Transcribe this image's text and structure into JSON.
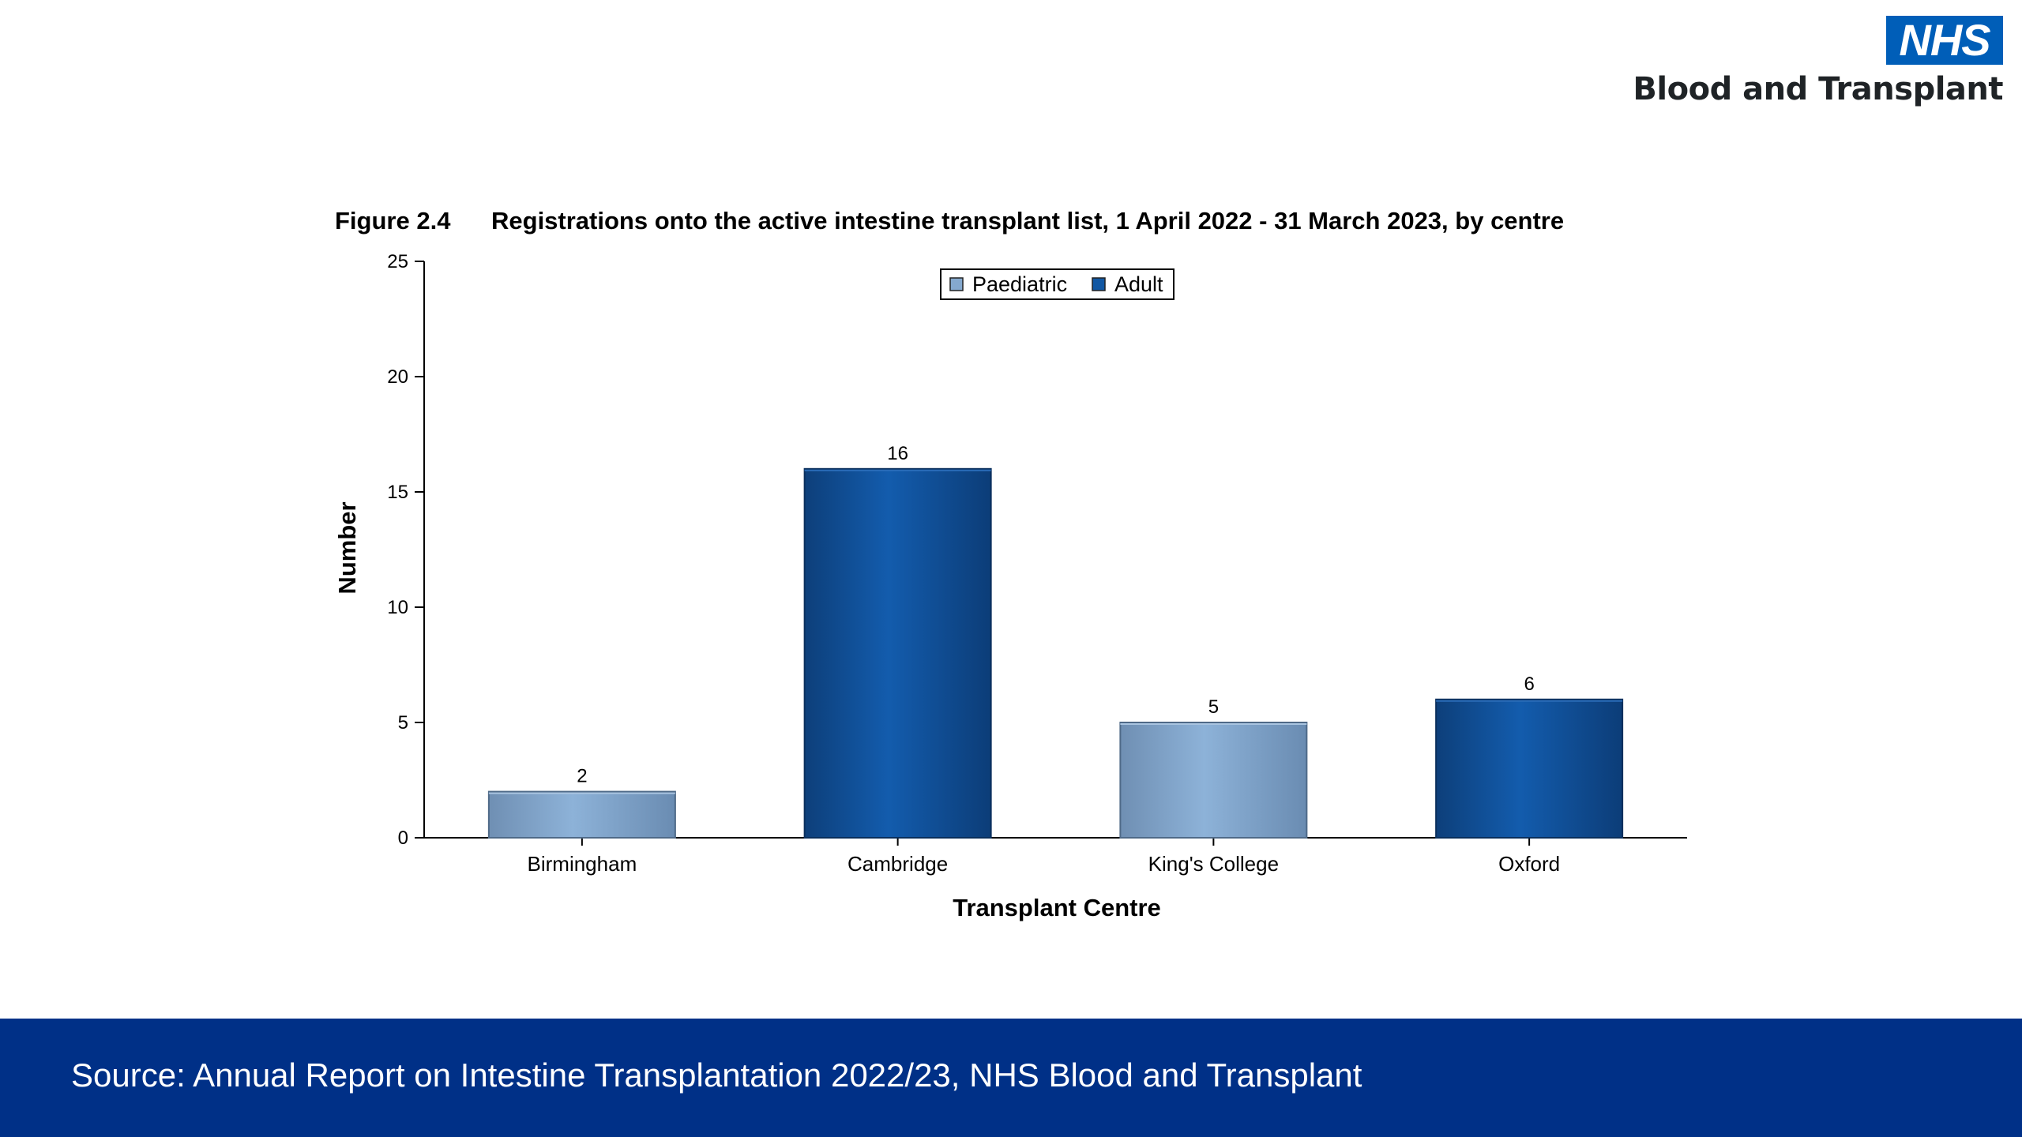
{
  "logo": {
    "nhs": "NHS",
    "subtitle": "Blood and Transplant",
    "color": "#005eb8"
  },
  "figure": {
    "number": "Figure 2.4",
    "title": "Registrations onto the active intestine transplant list, 1 April 2022 - 31 March 2023, by centre"
  },
  "chart_data": {
    "type": "bar",
    "categories": [
      "Birmingham",
      "Cambridge",
      "King's College",
      "Oxford"
    ],
    "values": [
      2,
      16,
      5,
      6
    ],
    "bar_type": [
      "Paediatric",
      "Adult",
      "Paediatric",
      "Adult"
    ],
    "data_labels": [
      "2",
      "16",
      "5",
      "6"
    ],
    "xlabel": "Transplant Centre",
    "ylabel": "Number",
    "ylim": [
      0,
      25
    ],
    "yticks": [
      0,
      5,
      10,
      15,
      20,
      25
    ],
    "legend": {
      "placement": "top-center",
      "entries": [
        {
          "label": "Paediatric",
          "color": "#85a9cf"
        },
        {
          "label": "Adult",
          "color": "#1157a3"
        }
      ]
    },
    "grid": false
  },
  "footer": {
    "source": "Source: Annual Report on Intestine Transplantation 2022/23, NHS Blood and Transplant",
    "color": "#003087"
  }
}
